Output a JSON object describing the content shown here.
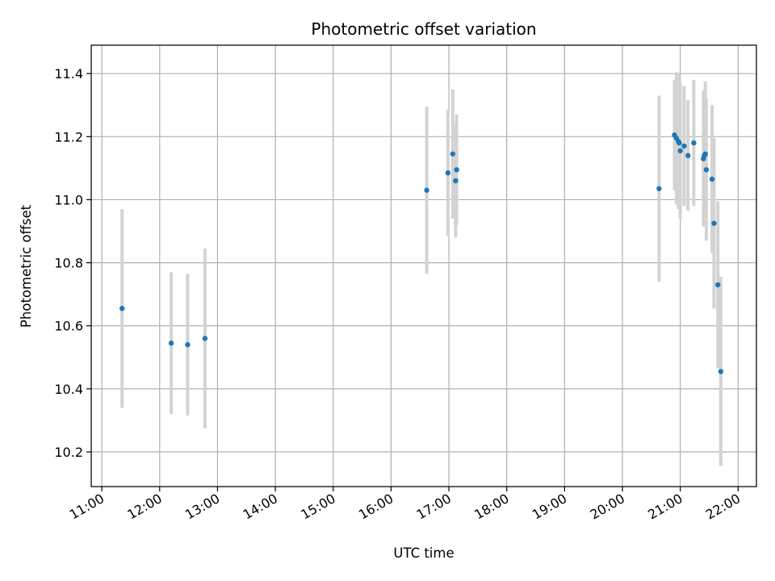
{
  "chart_data": {
    "type": "scatter",
    "title": "Photometric offset variation",
    "xlabel": "UTC time",
    "ylabel": "Photometric offset",
    "grid": true,
    "x_ticks": [
      "11:00",
      "12:00",
      "13:00",
      "14:00",
      "15:00",
      "16:00",
      "17:00",
      "18:00",
      "19:00",
      "20:00",
      "21:00",
      "22:00"
    ],
    "y_ticks": [
      "10.2",
      "10.4",
      "10.6",
      "10.8",
      "11.0",
      "11.2",
      "11.4"
    ],
    "xlim": [
      "10:49",
      "22:19"
    ],
    "ylim": [
      10.09,
      11.49
    ],
    "colors": {
      "point": "#1f77b4",
      "errorbar": "#d3d3d3",
      "grid": "#b0b0b0"
    },
    "series": [
      {
        "points": [
          {
            "x": "11:21",
            "y": 10.655,
            "err": 0.315
          },
          {
            "x": "12:12",
            "y": 10.545,
            "err": 0.225
          },
          {
            "x": "12:29",
            "y": 10.54,
            "err": 0.225
          },
          {
            "x": "12:47",
            "y": 10.56,
            "err": 0.285
          },
          {
            "x": "16:37",
            "y": 11.03,
            "err": 0.265
          },
          {
            "x": "16:59",
            "y": 11.085,
            "err": 0.2
          },
          {
            "x": "17:04",
            "y": 11.145,
            "err": 0.205
          },
          {
            "x": "17:07",
            "y": 11.06,
            "err": 0.18
          },
          {
            "x": "17:08",
            "y": 11.095,
            "err": 0.175
          },
          {
            "x": "20:38",
            "y": 11.035,
            "err": 0.295
          },
          {
            "x": "20:54",
            "y": 11.205,
            "err": 0.175
          },
          {
            "x": "20:56",
            "y": 11.195,
            "err": 0.21
          },
          {
            "x": "20:58",
            "y": 11.185,
            "err": 0.215
          },
          {
            "x": "20:59",
            "y": 11.18,
            "err": 0.19
          },
          {
            "x": "21:00",
            "y": 11.155,
            "err": 0.215
          },
          {
            "x": "21:04",
            "y": 11.17,
            "err": 0.19
          },
          {
            "x": "21:08",
            "y": 11.14,
            "err": 0.175
          },
          {
            "x": "21:14",
            "y": 11.18,
            "err": 0.2
          },
          {
            "x": "21:24",
            "y": 11.13,
            "err": 0.215
          },
          {
            "x": "21:25",
            "y": 11.14,
            "err": 0.21
          },
          {
            "x": "21:26",
            "y": 11.145,
            "err": 0.23
          },
          {
            "x": "21:27",
            "y": 11.095,
            "err": 0.225
          },
          {
            "x": "21:33",
            "y": 11.065,
            "err": 0.235
          },
          {
            "x": "21:35",
            "y": 10.925,
            "err": 0.27
          },
          {
            "x": "21:39",
            "y": 10.73,
            "err": 0.265
          },
          {
            "x": "21:42",
            "y": 10.455,
            "err": 0.3
          }
        ]
      }
    ]
  }
}
